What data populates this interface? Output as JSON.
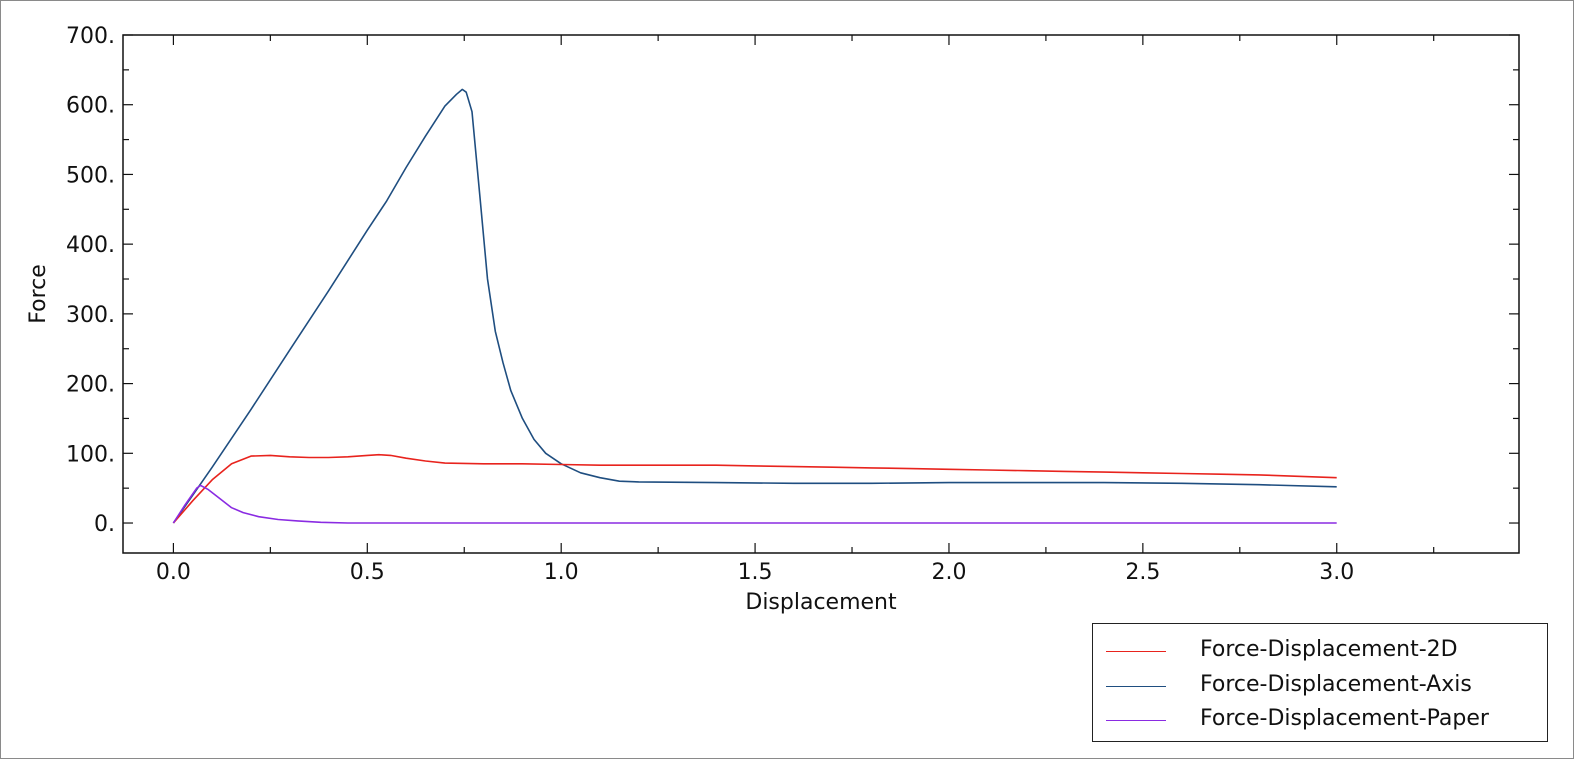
{
  "colors": {
    "series_2d": "#e8231d",
    "series_axis": "#1f4e80",
    "series_paper": "#8a2be2",
    "axis": "#111111"
  },
  "chart_data": {
    "type": "line",
    "title": "",
    "xlabel": "Displacement",
    "ylabel": "Force",
    "xlim": [
      -0.13,
      3.47
    ],
    "ylim": [
      -43,
      700
    ],
    "x_ticks": [
      0.0,
      0.5,
      1.0,
      1.5,
      2.0,
      2.5,
      3.0
    ],
    "x_tick_labels": [
      "0.0",
      "0.5",
      "1.0",
      "1.5",
      "2.0",
      "2.5",
      "3.0"
    ],
    "y_ticks": [
      0,
      100,
      200,
      300,
      400,
      500,
      600,
      700
    ],
    "y_tick_labels": [
      "0.",
      "100.",
      "200.",
      "300.",
      "400.",
      "500.",
      "600.",
      "700."
    ],
    "grid": false,
    "legend_position": "bottom-right outside",
    "series": [
      {
        "name": "Force-Displacement-2D",
        "color_key": "series_2d",
        "points": [
          [
            0.0,
            0
          ],
          [
            0.05,
            32
          ],
          [
            0.1,
            62
          ],
          [
            0.15,
            85
          ],
          [
            0.2,
            96
          ],
          [
            0.25,
            97
          ],
          [
            0.3,
            95
          ],
          [
            0.35,
            94
          ],
          [
            0.4,
            94
          ],
          [
            0.45,
            95
          ],
          [
            0.5,
            97
          ],
          [
            0.53,
            98
          ],
          [
            0.56,
            97
          ],
          [
            0.6,
            93
          ],
          [
            0.65,
            89
          ],
          [
            0.7,
            86
          ],
          [
            0.8,
            85
          ],
          [
            0.9,
            85
          ],
          [
            1.0,
            84
          ],
          [
            1.1,
            83
          ],
          [
            1.2,
            83
          ],
          [
            1.3,
            83
          ],
          [
            1.4,
            83
          ],
          [
            1.5,
            82
          ],
          [
            1.6,
            81
          ],
          [
            1.7,
            80
          ],
          [
            1.8,
            79
          ],
          [
            1.9,
            78
          ],
          [
            2.0,
            77
          ],
          [
            2.1,
            76
          ],
          [
            2.2,
            75
          ],
          [
            2.3,
            74
          ],
          [
            2.4,
            73
          ],
          [
            2.5,
            72
          ],
          [
            2.6,
            71
          ],
          [
            2.7,
            70
          ],
          [
            2.8,
            69
          ],
          [
            2.9,
            67
          ],
          [
            3.0,
            65
          ]
        ]
      },
      {
        "name": "Force-Displacement-Axis",
        "color_key": "series_axis",
        "points": [
          [
            0.0,
            0
          ],
          [
            0.1,
            80
          ],
          [
            0.2,
            163
          ],
          [
            0.3,
            248
          ],
          [
            0.4,
            333
          ],
          [
            0.5,
            420
          ],
          [
            0.55,
            462
          ],
          [
            0.6,
            510
          ],
          [
            0.65,
            555
          ],
          [
            0.7,
            598
          ],
          [
            0.73,
            615
          ],
          [
            0.745,
            622
          ],
          [
            0.755,
            618
          ],
          [
            0.77,
            590
          ],
          [
            0.79,
            470
          ],
          [
            0.81,
            350
          ],
          [
            0.83,
            275
          ],
          [
            0.85,
            230
          ],
          [
            0.87,
            190
          ],
          [
            0.9,
            150
          ],
          [
            0.93,
            120
          ],
          [
            0.96,
            100
          ],
          [
            1.0,
            85
          ],
          [
            1.05,
            72
          ],
          [
            1.1,
            65
          ],
          [
            1.15,
            60
          ],
          [
            1.2,
            59
          ],
          [
            1.4,
            58
          ],
          [
            1.6,
            57
          ],
          [
            1.8,
            57
          ],
          [
            2.0,
            58
          ],
          [
            2.2,
            58
          ],
          [
            2.4,
            58
          ],
          [
            2.6,
            57
          ],
          [
            2.8,
            55
          ],
          [
            3.0,
            52
          ]
        ]
      },
      {
        "name": "Force-Displacement-Paper",
        "color_key": "series_paper",
        "points": [
          [
            0.0,
            0
          ],
          [
            0.03,
            26
          ],
          [
            0.06,
            50
          ],
          [
            0.07,
            54
          ],
          [
            0.09,
            48
          ],
          [
            0.12,
            35
          ],
          [
            0.15,
            22
          ],
          [
            0.18,
            15
          ],
          [
            0.22,
            9
          ],
          [
            0.27,
            5
          ],
          [
            0.32,
            3
          ],
          [
            0.38,
            1
          ],
          [
            0.45,
            0
          ],
          [
            0.6,
            0
          ],
          [
            1.0,
            0
          ],
          [
            1.5,
            0
          ],
          [
            2.0,
            0
          ],
          [
            2.5,
            0
          ],
          [
            3.0,
            0
          ]
        ]
      }
    ]
  }
}
